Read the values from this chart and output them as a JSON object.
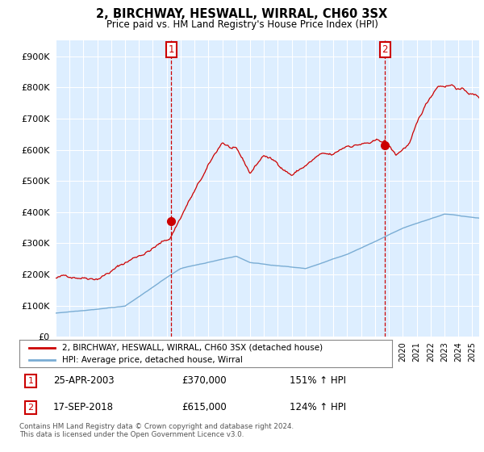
{
  "title": "2, BIRCHWAY, HESWALL, WIRRAL, CH60 3SX",
  "subtitle": "Price paid vs. HM Land Registry's House Price Index (HPI)",
  "legend_line1": "2, BIRCHWAY, HESWALL, WIRRAL, CH60 3SX (detached house)",
  "legend_line2": "HPI: Average price, detached house, Wirral",
  "annotation1_date": "25-APR-2003",
  "annotation1_price": "£370,000",
  "annotation1_hpi": "151% ↑ HPI",
  "annotation2_date": "17-SEP-2018",
  "annotation2_price": "£615,000",
  "annotation2_hpi": "124% ↑ HPI",
  "footer": "Contains HM Land Registry data © Crown copyright and database right 2024.\nThis data is licensed under the Open Government Licence v3.0.",
  "background_color": "#ffffff",
  "plot_bg_color": "#ddeeff",
  "grid_color": "#ffffff",
  "red_line_color": "#cc0000",
  "blue_line_color": "#7aadd4",
  "annotation_box_color": "#cc0000",
  "vline_color": "#cc0000",
  "ylim": [
    0,
    950000
  ],
  "yticks": [
    0,
    100000,
    200000,
    300000,
    400000,
    500000,
    600000,
    700000,
    800000,
    900000
  ],
  "sale1_x": 2003.32,
  "sale1_y": 370000,
  "sale2_x": 2018.72,
  "sale2_y": 615000,
  "xmin": 1995,
  "xmax": 2025.5
}
